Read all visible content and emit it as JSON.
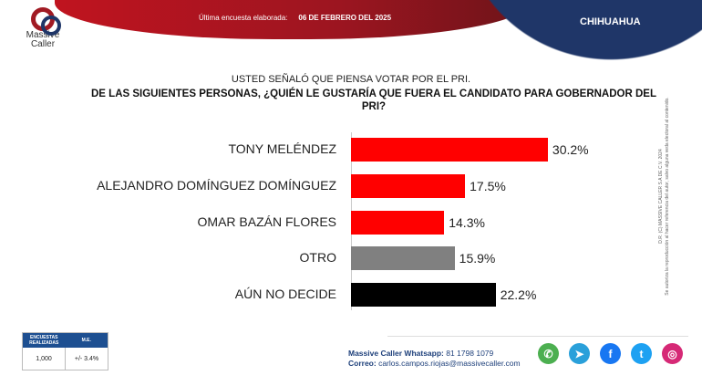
{
  "header": {
    "brand": "Massive Caller",
    "survey_label": "Última encuesta elaborada:",
    "survey_date": "06 DE FEBRERO DEL 2025",
    "state": "CHIHUAHUA"
  },
  "question": {
    "intro": "USTED SEÑALÓ QUE PIENSA VOTAR POR EL PRI.",
    "text": "DE LAS SIGUIENTES PERSONAS, ¿QUIÉN LE GUSTARÍA QUE FUERA EL CANDIDATO PARA GOBERNADOR DEL PRI?"
  },
  "chart_data": {
    "type": "bar",
    "orientation": "horizontal",
    "categories": [
      "TONY MELÉNDEZ",
      "ALEJANDRO DOMÍNGUEZ DOMÍNGUEZ",
      "OMAR BAZÁN FLORES",
      "OTRO",
      "AÚN NO DECIDE"
    ],
    "values": [
      30.2,
      17.5,
      14.3,
      15.9,
      22.2
    ],
    "value_labels": [
      "30.2%",
      "17.5%",
      "14.3%",
      "15.9%",
      "22.2%"
    ],
    "colors": [
      "#ff0000",
      "#ff0000",
      "#ff0000",
      "#808080",
      "#000000"
    ],
    "xlim": [
      0,
      45
    ]
  },
  "legal": {
    "line1": "D.R. (C) MASSIVE CALLER S.A DE C.V. 2024",
    "line2": "Se autoriza la reproducción al hacer referencia del autor, salvo alguna veda electoral al contenido."
  },
  "table": {
    "headers": [
      "ENCUESTAS REALIZADAS",
      "M.E."
    ],
    "values": [
      "1,000",
      "+/- 3.4%"
    ]
  },
  "contact": {
    "whatsapp_label": "Massive Caller Whatsapp:",
    "whatsapp": "81 1798 1079",
    "email_label": "Correo:",
    "email": "carlos.campos.riojas@massivecaller.com"
  },
  "social": [
    {
      "icon": "whatsapp-icon",
      "color": "#4caf50",
      "glyph": "✆"
    },
    {
      "icon": "telegram-icon",
      "color": "#2aa0da",
      "glyph": "➤"
    },
    {
      "icon": "facebook-icon",
      "color": "#1877f2",
      "glyph": "f"
    },
    {
      "icon": "twitter-icon",
      "color": "#1da1f2",
      "glyph": "t"
    },
    {
      "icon": "instagram-icon",
      "color": "#d62976",
      "glyph": "◎"
    }
  ]
}
